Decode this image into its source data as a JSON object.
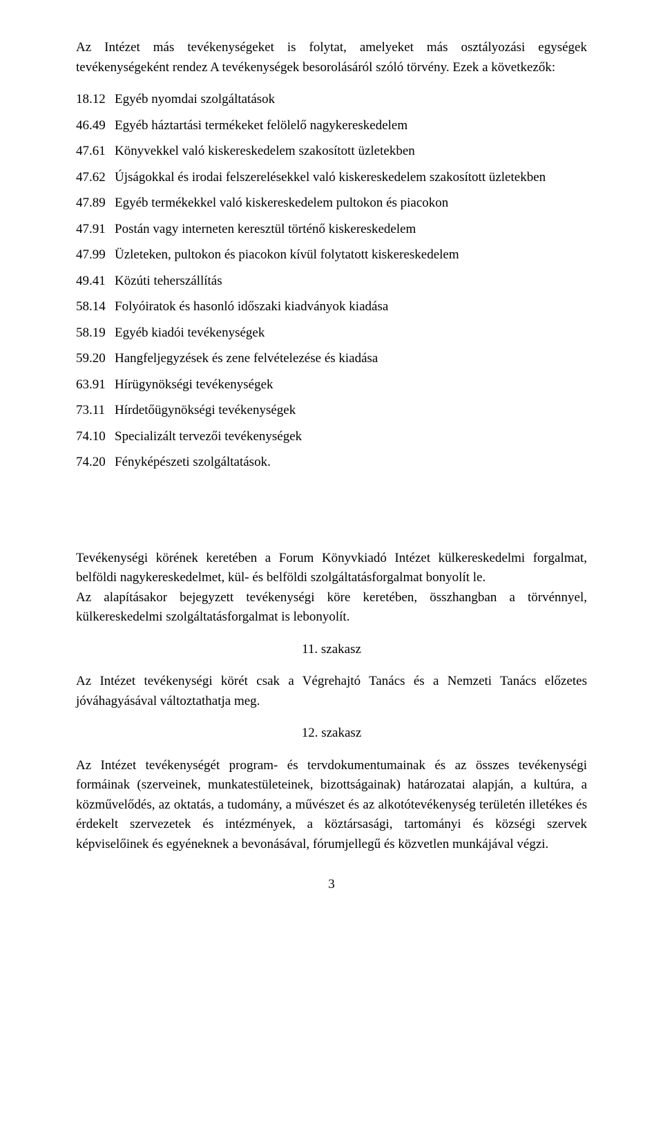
{
  "intro": "Az Intézet más tevékenységeket is folytat, amelyeket más osztályozási egységek tevékenységeként rendez A tevékenységek besorolásáról szóló törvény. Ezek a következők:",
  "items": [
    {
      "code": "18.12",
      "text": "Egyéb nyomdai szolgáltatások"
    },
    {
      "code": "46.49",
      "text": "Egyéb háztartási termékeket felölelő nagykereskedelem"
    },
    {
      "code": "47.61",
      "text": "Könyvekkel való kiskereskedelem szakosított üzletekben"
    },
    {
      "code": "47.62",
      "text": "Újságokkal és irodai felszerelésekkel való kiskereskedelem szakosított üzletekben"
    },
    {
      "code": "47.89",
      "text": "Egyéb termékekkel való kiskereskedelem pultokon és piacokon"
    },
    {
      "code": "47.91",
      "text": "Postán vagy interneten keresztül történő kiskereskedelem"
    },
    {
      "code": "47.99",
      "text": "Üzleteken, pultokon és piacokon kívül folytatott kiskereskedelem"
    },
    {
      "code": "49.41",
      "text": "Közúti teherszállítás"
    },
    {
      "code": "58.14",
      "text": "Folyóiratok és hasonló időszaki kiadványok kiadása"
    },
    {
      "code": "58.19",
      "text": "Egyéb kiadói tevékenységek"
    },
    {
      "code": "59.20",
      "text": "Hangfeljegyzések és zene felvételezése és kiadása"
    },
    {
      "code": "63.91",
      "text": "Hírügynökségi tevékenységek"
    },
    {
      "code": "73.11",
      "text": "Hírdetőügynökségi tevékenységek"
    },
    {
      "code": "74.10",
      "text": "Specializált tervezői tevékenységek"
    },
    {
      "code": "74.20",
      "text": "Fényképészeti szolgáltatások."
    }
  ],
  "para2a": "Tevékenységi körének keretében a Forum Könyvkiadó Intézet külkereskedelmi forgalmat, belföldi nagykereskedelmet, kül- és belföldi szolgáltatásforgalmat bonyolít le.",
  "para2b": "Az alapításakor bejegyzett tevékenységi köre keretében, összhangban a törvénnyel, külkereskedelmi szolgáltatásforgalmat is lebonyolít.",
  "sec11_title": "11. szakasz",
  "sec11_body": "Az Intézet tevékenységi körét csak a Végrehajtó Tanács és a Nemzeti Tanács előzetes jóváhagyásával változtathatja meg.",
  "sec12_title": "12. szakasz",
  "sec12_body": "Az Intézet tevékenységét program- és tervdokumentumainak és az összes tevékenységi formáinak (szerveinek, munkatestületeinek, bizottságainak) határozatai alapján, a kultúra, a közművelődés, az oktatás, a tudomány, a művészet és az alkotótevékenység területén illetékes és érdekelt szervezetek és intézmények, a köztársasági, tartományi és községi szervek képviselőinek és egyéneknek a bevonásával, fórumjellegű és közvetlen munkájával végzi.",
  "page_number": "3"
}
